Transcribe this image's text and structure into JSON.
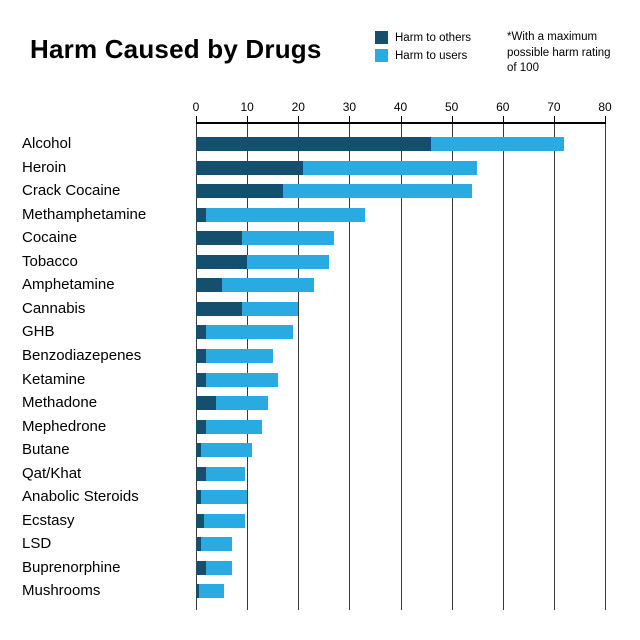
{
  "title": "Harm Caused by Drugs",
  "note": "*With a maximum possible harm rating of 100",
  "legend": [
    {
      "label": "Harm to others",
      "color": "#14506e"
    },
    {
      "label": "Harm to users",
      "color": "#29abe2"
    }
  ],
  "chart_data": {
    "type": "bar",
    "orientation": "horizontal",
    "stacked": true,
    "title": "Harm Caused by Drugs",
    "xlabel": "",
    "ylabel": "",
    "xlim": [
      0,
      80
    ],
    "x_ticks": [
      0,
      10,
      20,
      30,
      40,
      50,
      60,
      70,
      80
    ],
    "grid": true,
    "legend_position": "top",
    "categories": [
      "Alcohol",
      "Heroin",
      "Crack Cocaine",
      "Methamphetamine",
      "Cocaine",
      "Tobacco",
      "Amphetamine",
      "Cannabis",
      "GHB",
      "Benzodiazepenes",
      "Ketamine",
      "Methadone",
      "Mephedrone",
      "Butane",
      "Qat/Khat",
      "Anabolic Steroids",
      "Ecstasy",
      "LSD",
      "Buprenorphine",
      "Mushrooms"
    ],
    "series": [
      {
        "name": "Harm to others",
        "color": "#14506e",
        "values": [
          46,
          21,
          17,
          2,
          9,
          10,
          5,
          9,
          2,
          2,
          2,
          4,
          2,
          1,
          2,
          1,
          1.5,
          1,
          2,
          0.5
        ]
      },
      {
        "name": "Harm to users",
        "color": "#29abe2",
        "values": [
          26,
          34,
          37,
          31,
          18,
          16,
          18,
          11,
          17,
          13,
          14,
          10,
          11,
          10,
          7.5,
          9,
          8,
          6,
          5,
          5
        ]
      }
    ],
    "totals": [
      72,
      55,
      54,
      33,
      27,
      26,
      23,
      20,
      19,
      15,
      16,
      14,
      13,
      11,
      9.5,
      10,
      9.5,
      7,
      7,
      5.5
    ]
  }
}
